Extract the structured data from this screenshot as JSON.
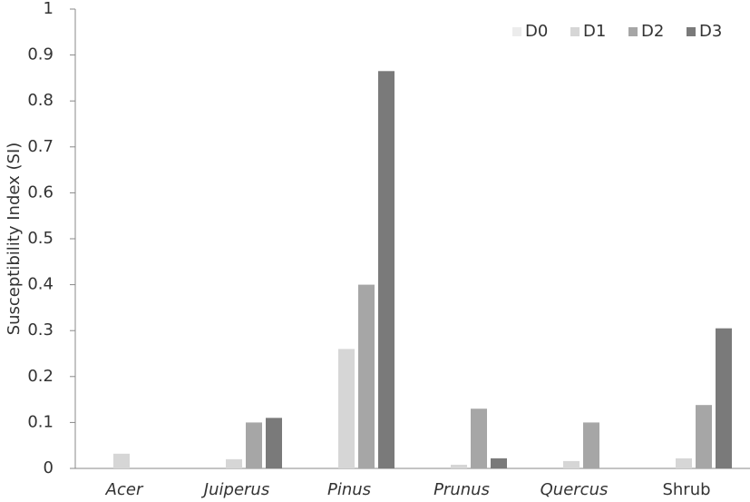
{
  "chart_data": {
    "type": "bar",
    "y_label": "Susceptibility Index (SI)",
    "categories": [
      "Acer",
      "Juiperus",
      "Pinus",
      "Prunus",
      "Quercus",
      "Shrub"
    ],
    "series": [
      {
        "name": "D0",
        "color": "#ececec",
        "values": [
          0,
          0,
          0,
          0,
          0,
          0
        ]
      },
      {
        "name": "D1",
        "color": "#d6d6d6",
        "values": [
          0.032,
          0.02,
          0.26,
          0.008,
          0.016,
          0.022
        ]
      },
      {
        "name": "D2",
        "color": "#a6a6a6",
        "values": [
          0,
          0.1,
          0.4,
          0.13,
          0.1,
          0.138
        ]
      },
      {
        "name": "D3",
        "color": "#7a7a7a",
        "values": [
          0,
          0.11,
          0.865,
          0.022,
          0,
          0.305
        ]
      }
    ],
    "ylim": [
      0,
      1
    ],
    "yticks": [
      0,
      0.1,
      0.2,
      0.3,
      0.4,
      0.5,
      0.6,
      0.7,
      0.8,
      0.9,
      1
    ],
    "grid": false,
    "legend": "upper right"
  }
}
